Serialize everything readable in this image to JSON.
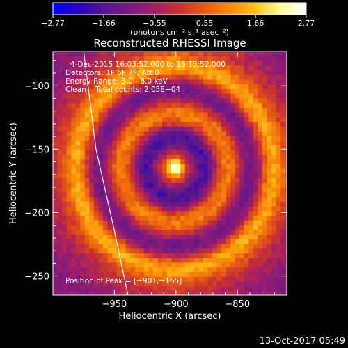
{
  "chart_data": {
    "type": "heatmap",
    "title": "Reconstructed RHESSI Image",
    "xlabel": "Heliocentric X (arcsec)",
    "ylabel": "Heliocentric Y (arcsec)",
    "xlim": [
      -1000,
      -810
    ],
    "ylim": [
      -265,
      -73
    ],
    "xticks": [
      -950,
      -900,
      -850
    ],
    "yticks": [
      -100,
      -150,
      -200,
      -250
    ],
    "xtick_labels": [
      "−950",
      "−900",
      "−850"
    ],
    "ytick_labels": [
      "−100",
      "−150",
      "−200",
      "−250"
    ],
    "colorbar": {
      "min": -2.77,
      "max": 2.77,
      "ticks": [
        -2.77,
        -1.66,
        -0.55,
        0.55,
        1.66,
        2.77
      ],
      "tick_labels": [
        "−2.77",
        "−1.66",
        "−0.55",
        "0.55",
        "1.66",
        "2.77"
      ],
      "unit_label": "(photons cm⁻² s⁻¹ asec⁻²)",
      "colormap": [
        "#0000ff",
        "#2a00c0",
        "#551690",
        "#7a1a80",
        "#a01e68",
        "#c83232",
        "#e85a14",
        "#f88c0a",
        "#ffc21e",
        "#ffff96",
        "#ffffff"
      ]
    },
    "annotations": [
      "4-Dec-2015 16:03:52.000 to 16:13:52.000",
      "Detectors: 1F 5F 7F, Att 0",
      "Energy Range: 3.0 - 6.0 keV",
      "Clean    Total counts: 2.05E+04"
    ],
    "peak_label": "Position of Peak = [−901,−165]",
    "peak": {
      "x": -901,
      "y": -165,
      "value": 2.77
    },
    "features": [
      {
        "kind": "central-source",
        "x": -901,
        "y": -165,
        "value": 2.77
      },
      {
        "kind": "ring",
        "center": [
          -901,
          -165
        ],
        "radius_arcsec": 24,
        "value": -1.8
      },
      {
        "kind": "ring",
        "center": [
          -901,
          -165
        ],
        "radius_arcsec": 43,
        "value": 1.0
      },
      {
        "kind": "ring",
        "center": [
          -901,
          -165
        ],
        "radius_arcsec": 62,
        "value": -1.3
      },
      {
        "kind": "ring",
        "center": [
          -901,
          -165
        ],
        "radius_arcsec": 80,
        "value": 1.4
      }
    ],
    "limb_curve": [
      [
        -975,
        -73
      ],
      [
        -965,
        -150
      ],
      [
        -951,
        -210
      ],
      [
        -939,
        -265
      ]
    ],
    "grid": false,
    "legend": "colorbar-top"
  },
  "footer": {
    "date": "13-Oct-2017 05:49"
  }
}
